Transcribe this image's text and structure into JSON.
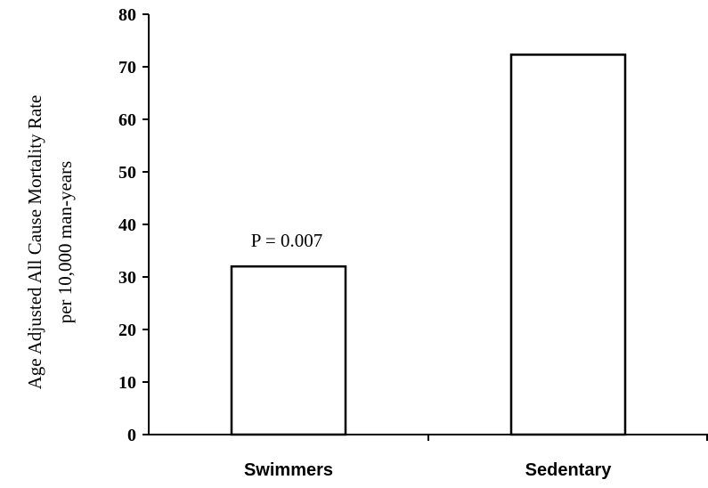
{
  "chart_data": {
    "type": "bar",
    "title": "",
    "categories": [
      "Swimmers",
      "Sedentary"
    ],
    "values": [
      32,
      72.3
    ],
    "ylabel_line1": "Age Adjusted All Cause Mortality Rate",
    "ylabel_line2": "per 10,000 man-years",
    "xlabel": "",
    "ylim": [
      0,
      80
    ],
    "yticks": [
      "0",
      "10",
      "20",
      "30",
      "40",
      "50",
      "60",
      "70",
      "80"
    ],
    "grid": false,
    "legend": "none",
    "bar_fill": "#ffffff",
    "bar_stroke": "#000000",
    "annotations": [
      {
        "text": "P = 0.007",
        "category": "Swimmers"
      }
    ]
  }
}
